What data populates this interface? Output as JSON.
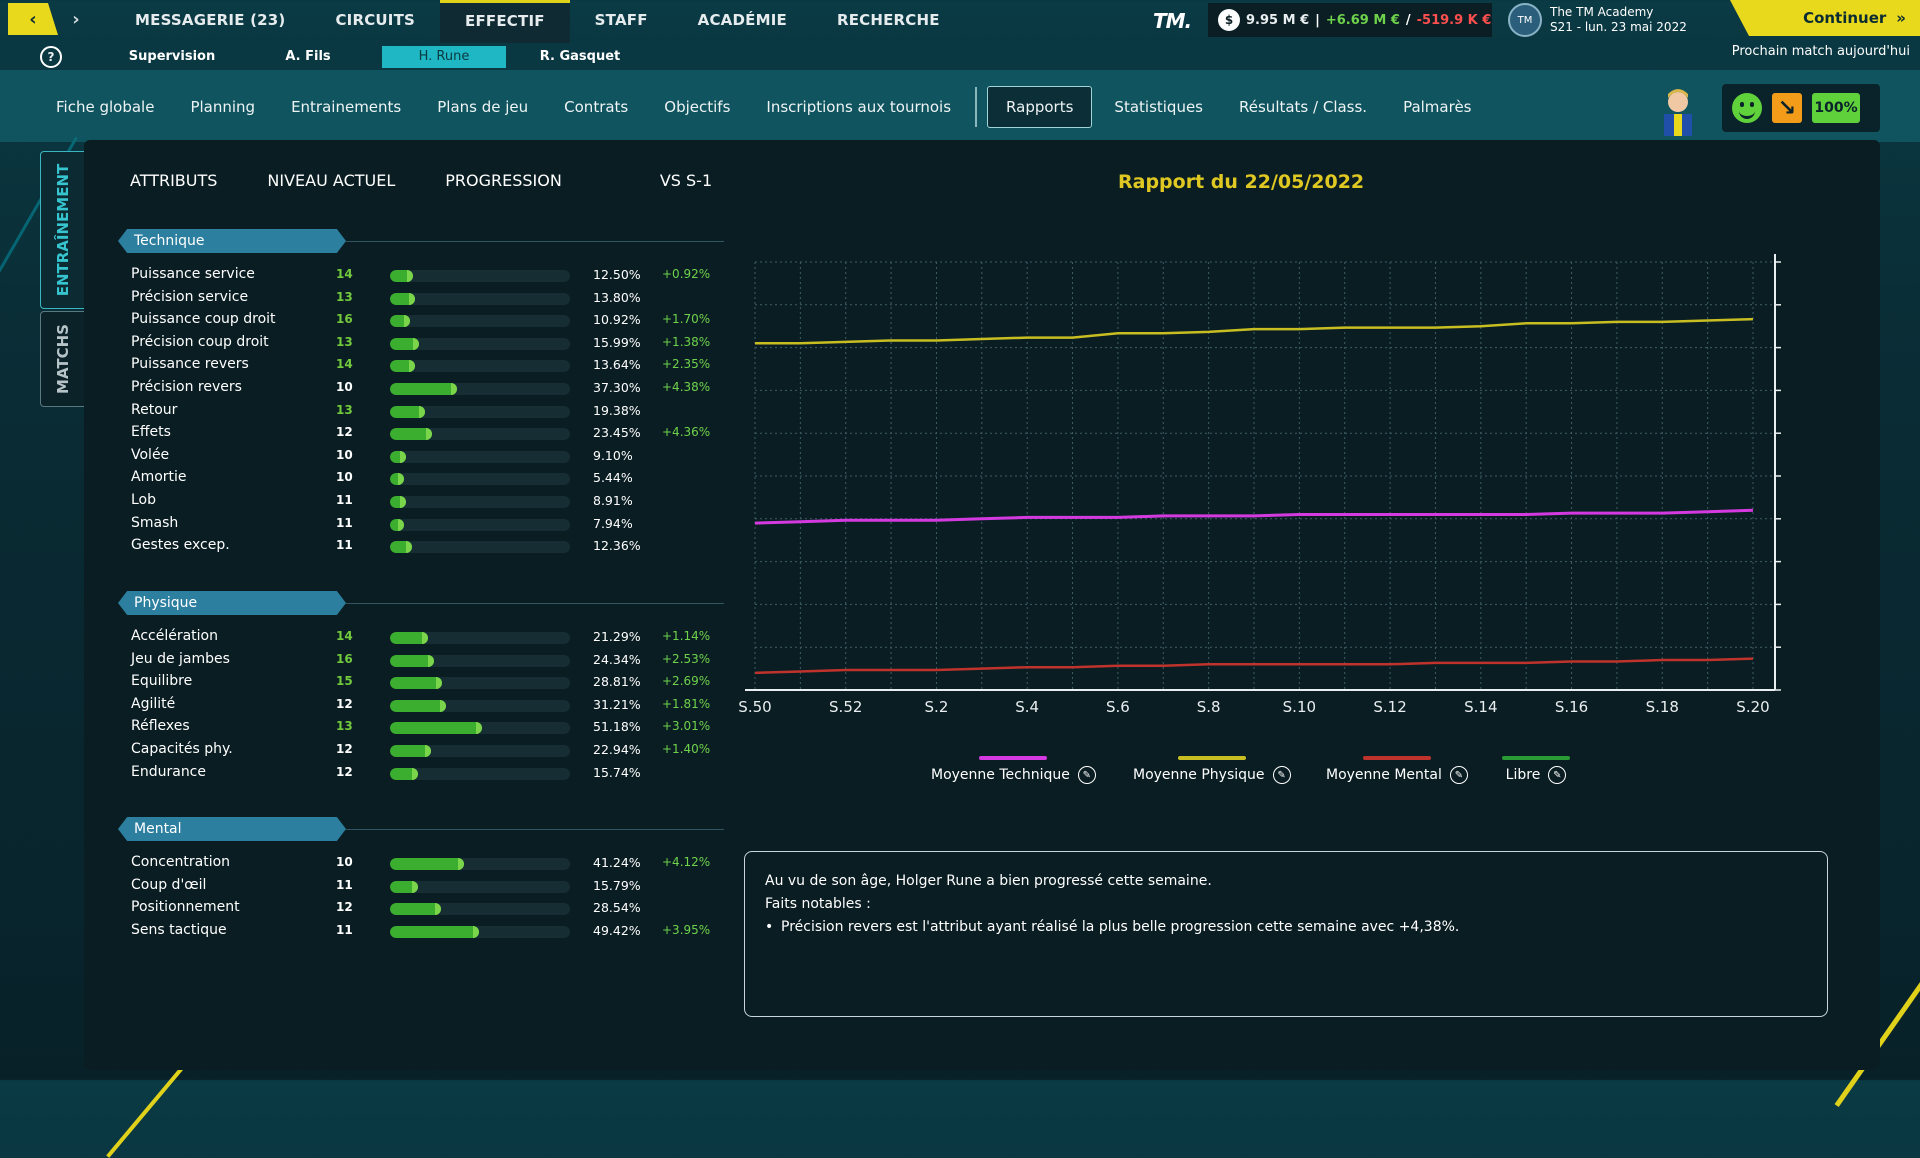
{
  "topbar": {
    "tabs": [
      {
        "label": "MESSAGERIE (23)",
        "active": false
      },
      {
        "label": "CIRCUITS",
        "active": false
      },
      {
        "label": "EFFECTIF",
        "active": true
      },
      {
        "label": "STAFF",
        "active": false
      },
      {
        "label": "ACADÉMIE",
        "active": false
      },
      {
        "label": "RECHERCHE",
        "active": false
      }
    ],
    "logo": "TM.",
    "finance": {
      "balance": "9.95 M €",
      "income": "+6.69 M €",
      "expense": "-519.9 K €",
      "separator1": "|",
      "separator2": "/"
    },
    "academy": {
      "avatar": "TM",
      "name": "The TM Academy",
      "date": "S21 - lun. 23 mai 2022"
    },
    "continue_label": "Continuer",
    "next_match": "Prochain match aujourd'hui"
  },
  "player_tabs": [
    {
      "label": "Supervision",
      "active": false
    },
    {
      "label": "A. Fils",
      "active": false
    },
    {
      "label": "H. Rune",
      "active": true
    },
    {
      "label": "R. Gasquet",
      "active": false
    }
  ],
  "sections": [
    "Fiche globale",
    "Planning",
    "Entrainements",
    "Plans de jeu",
    "Contrats",
    "Objectifs",
    "Inscriptions aux tournois",
    "Rapports",
    "Statistiques",
    "Résultats / Class.",
    "Palmarès"
  ],
  "active_section": "Rapports",
  "status": {
    "fitness": "100%",
    "mood_icon": "smiley-icon",
    "trend_icon": "arrow-down-right-icon"
  },
  "side_tabs": {
    "training": "ENTRAÎNEMENT",
    "matches": "MATCHS"
  },
  "attr_header": {
    "col1": "ATTRIBUTS",
    "col2": "NIVEAU ACTUEL",
    "col3": "PROGRESSION",
    "col4": "VS S-1"
  },
  "groups": [
    {
      "title": "Technique",
      "rows": [
        {
          "name": "Puissance service",
          "level": "14",
          "hi": true,
          "pct": "12.50%",
          "progress": 0.125,
          "delta": "+0.92%"
        },
        {
          "name": "Précision service",
          "level": "13",
          "hi": true,
          "pct": "13.80%",
          "progress": 0.138,
          "delta": ""
        },
        {
          "name": "Puissance coup droit",
          "level": "16",
          "hi": true,
          "pct": "10.92%",
          "progress": 0.1092,
          "delta": "+1.70%"
        },
        {
          "name": "Précision coup droit",
          "level": "13",
          "hi": true,
          "pct": "15.99%",
          "progress": 0.1599,
          "delta": "+1.38%"
        },
        {
          "name": "Puissance revers",
          "level": "14",
          "hi": true,
          "pct": "13.64%",
          "progress": 0.1364,
          "delta": "+2.35%"
        },
        {
          "name": "Précision revers",
          "level": "10",
          "hi": false,
          "pct": "37.30%",
          "progress": 0.373,
          "delta": "+4.38%"
        },
        {
          "name": "Retour",
          "level": "13",
          "hi": true,
          "pct": "19.38%",
          "progress": 0.1938,
          "delta": ""
        },
        {
          "name": "Effets",
          "level": "12",
          "hi": false,
          "pct": "23.45%",
          "progress": 0.2345,
          "delta": "+4.36%"
        },
        {
          "name": "Volée",
          "level": "10",
          "hi": false,
          "pct": "9.10%",
          "progress": 0.091,
          "delta": ""
        },
        {
          "name": "Amortie",
          "level": "10",
          "hi": false,
          "pct": "5.44%",
          "progress": 0.0544,
          "delta": ""
        },
        {
          "name": "Lob",
          "level": "11",
          "hi": false,
          "pct": "8.91%",
          "progress": 0.0891,
          "delta": ""
        },
        {
          "name": "Smash",
          "level": "11",
          "hi": false,
          "pct": "7.94%",
          "progress": 0.0794,
          "delta": ""
        },
        {
          "name": "Gestes excep.",
          "level": "11",
          "hi": false,
          "pct": "12.36%",
          "progress": 0.1236,
          "delta": ""
        }
      ]
    },
    {
      "title": "Physique",
      "rows": [
        {
          "name": "Accélération",
          "level": "14",
          "hi": true,
          "pct": "21.29%",
          "progress": 0.2129,
          "delta": "+1.14%"
        },
        {
          "name": "Jeu de jambes",
          "level": "16",
          "hi": true,
          "pct": "24.34%",
          "progress": 0.2434,
          "delta": "+2.53%"
        },
        {
          "name": "Equilibre",
          "level": "15",
          "hi": true,
          "pct": "28.81%",
          "progress": 0.2881,
          "delta": "+2.69%"
        },
        {
          "name": "Agilité",
          "level": "12",
          "hi": false,
          "pct": "31.21%",
          "progress": 0.3121,
          "delta": "+1.81%"
        },
        {
          "name": "Réflexes",
          "level": "13",
          "hi": true,
          "pct": "51.18%",
          "progress": 0.5118,
          "delta": "+3.01%"
        },
        {
          "name": "Capacités phy.",
          "level": "12",
          "hi": false,
          "pct": "22.94%",
          "progress": 0.2294,
          "delta": "+1.40%"
        },
        {
          "name": "Endurance",
          "level": "12",
          "hi": false,
          "pct": "15.74%",
          "progress": 0.1574,
          "delta": ""
        }
      ]
    },
    {
      "title": "Mental",
      "rows": [
        {
          "name": "Concentration",
          "level": "10",
          "hi": false,
          "pct": "41.24%",
          "progress": 0.4124,
          "delta": "+4.12%"
        },
        {
          "name": "Coup d'œil",
          "level": "11",
          "hi": false,
          "pct": "15.79%",
          "progress": 0.1579,
          "delta": ""
        },
        {
          "name": "Positionnement",
          "level": "12",
          "hi": false,
          "pct": "28.54%",
          "progress": 0.2854,
          "delta": ""
        },
        {
          "name": "Sens tactique",
          "level": "11",
          "hi": false,
          "pct": "49.42%",
          "progress": 0.4942,
          "delta": "+3.95%"
        }
      ]
    }
  ],
  "chart_title": "Rapport du 22/05/2022",
  "chart_data": {
    "type": "line",
    "title": "Rapport du 22/05/2022",
    "x": [
      "S.50",
      "S.51",
      "S.52",
      "S.1",
      "S.2",
      "S.3",
      "S.4",
      "S.5",
      "S.6",
      "S.7",
      "S.8",
      "S.9",
      "S.10",
      "S.11",
      "S.12",
      "S.13",
      "S.14",
      "S.15",
      "S.16",
      "S.17",
      "S.18",
      "S.19",
      "S.20"
    ],
    "x_tick_labels": [
      "S.50",
      "S.52",
      "S.2",
      "S.4",
      "S.6",
      "S.8",
      "S.10",
      "S.12",
      "S.14",
      "S.16",
      "S.18",
      "S.20"
    ],
    "ylim": [
      11.0,
      14.0
    ],
    "y_ticks": [
      "14,00",
      "13,70",
      "13,40",
      "13,10",
      "12,80",
      "12,50",
      "12,20",
      "11,90",
      "11,60",
      "11,30",
      "11,00"
    ],
    "y_axis_position": "right",
    "grid": true,
    "series": [
      {
        "name": "Moyenne Technique",
        "color": "#d43ae0",
        "values": [
          12.17,
          12.18,
          12.19,
          12.19,
          12.19,
          12.2,
          12.21,
          12.21,
          12.21,
          12.22,
          12.22,
          12.22,
          12.23,
          12.23,
          12.23,
          12.23,
          12.23,
          12.23,
          12.24,
          12.24,
          12.24,
          12.25,
          12.26
        ]
      },
      {
        "name": "Moyenne Physique",
        "color": "#c8be22",
        "values": [
          13.43,
          13.43,
          13.44,
          13.45,
          13.45,
          13.46,
          13.47,
          13.47,
          13.5,
          13.5,
          13.51,
          13.53,
          13.53,
          13.54,
          13.54,
          13.54,
          13.55,
          13.57,
          13.57,
          13.58,
          13.58,
          13.59,
          13.6
        ]
      },
      {
        "name": "Moyenne Mental",
        "color": "#c0332c",
        "values": [
          11.12,
          11.13,
          11.14,
          11.14,
          11.14,
          11.15,
          11.16,
          11.16,
          11.17,
          11.17,
          11.18,
          11.18,
          11.18,
          11.18,
          11.18,
          11.19,
          11.19,
          11.19,
          11.2,
          11.2,
          11.21,
          11.21,
          11.22
        ]
      }
    ],
    "legend": [
      "Moyenne Technique",
      "Moyenne Physique",
      "Moyenne Mental",
      "Libre"
    ]
  },
  "legend_items": [
    {
      "label": "Moyenne Technique",
      "color": "#d43ae0"
    },
    {
      "label": "Moyenne Physique",
      "color": "#c8be22"
    },
    {
      "label": "Moyenne Mental",
      "color": "#c0332c"
    },
    {
      "label": "Libre",
      "color": "#2a9a35"
    }
  ],
  "report": {
    "line1": "Au vu de son âge, Holger Rune a bien progressé cette semaine.",
    "line2": "Faits notables :",
    "bullet": "Précision revers est l'attribut ayant réalisé la plus belle progression cette semaine avec +4,38%."
  }
}
